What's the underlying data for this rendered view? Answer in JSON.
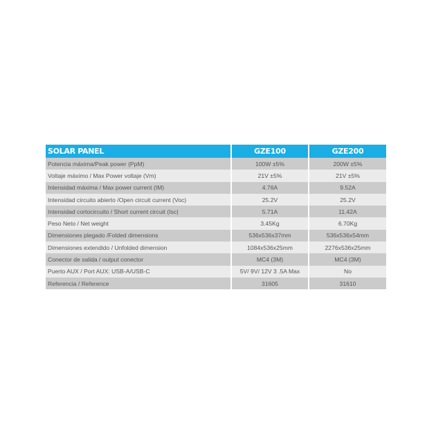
{
  "header": {
    "title": "SOLAR PANEL",
    "models": [
      "GZE100",
      "GZE200"
    ]
  },
  "accent_color": "#1aaee4",
  "rows": [
    {
      "label": "Potencia máxima/Peak power (PpM)",
      "values": [
        "100W ±5%",
        "200W ±5%"
      ]
    },
    {
      "label": "Voltaje máximo / Max Power voltaje (Vm)",
      "values": [
        "21V ±5%",
        "21V ±5%"
      ]
    },
    {
      "label": "Intensidad máxima / Max power current (IM)",
      "values": [
        "4.76A",
        "9.52A"
      ]
    },
    {
      "label": "Intensidad circuito abierto /Open circuit current (Voc)",
      "values": [
        "25.2V",
        "25.2V"
      ]
    },
    {
      "label": "Intensidad cortocircuito / Short current circuit  (Isc|",
      "values": [
        "5.71A",
        "11.42A"
      ]
    },
    {
      "label": "Peso Neto / Net weight",
      "values": [
        "3.45Kg",
        "6.70Kg"
      ]
    },
    {
      "label": "Dimensiones plegado /Folded dimensions",
      "values": [
        "536x536x37mm",
        "536x536x54mm"
      ]
    },
    {
      "label": "Dimensiones extendido / Unfolded dimension",
      "values": [
        "1084x536x25mm",
        "2276x536x25mm"
      ]
    },
    {
      "label": "Conector de salida /  output conector",
      "values": [
        "MC4 (3M)",
        "MC4 (3M)"
      ]
    },
    {
      "label": "Puerto AUX / Port AUX:  USB-A/USB-C",
      "values": [
        "5V/ 9V/ 12V 3 .5A Max",
        "No"
      ]
    },
    {
      "label": "Referencia / Reference",
      "values": [
        "31605",
        "31610"
      ]
    }
  ]
}
